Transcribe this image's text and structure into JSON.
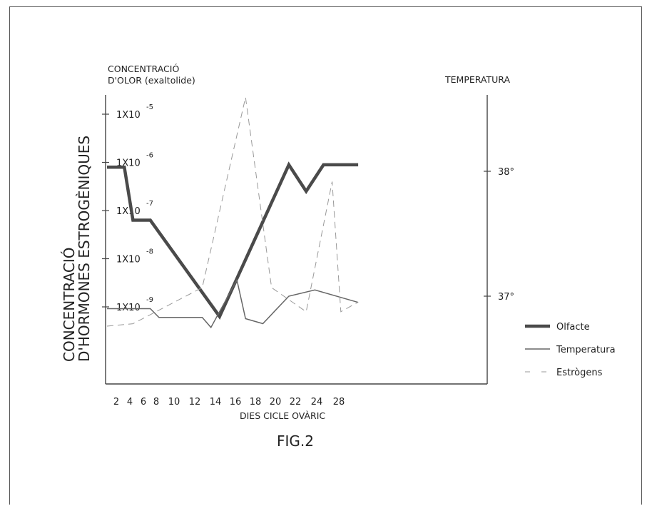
{
  "chart_data": {
    "type": "line",
    "caption": "FIG.2",
    "xlabel": "DIES CICLE OVÀRIC",
    "left_axis_title_line1": "CONCENTRACIÓ",
    "left_axis_title_line2": "D'OLOR (exaltolide)",
    "rotated_axis_title_line1": "CONCENTRACIÓ",
    "rotated_axis_title_line2": "D'HORMONES ESTROGÈNIQUES",
    "right_axis_title": "TEMPERATURA",
    "x_ticks": [
      "2",
      "4",
      "6",
      "8",
      "10",
      "12",
      "14",
      "16",
      "18",
      "20",
      "22",
      "24",
      "28"
    ],
    "y_left_ticks": [
      {
        "base": "1X10",
        "exp": "-5",
        "log": -5
      },
      {
        "base": "1X10",
        "exp": "-6",
        "log": -6
      },
      {
        "base": "1X10",
        "exp": "-7",
        "log": -7
      },
      {
        "base": "1X10",
        "exp": "-8",
        "log": -8
      },
      {
        "base": "1X10",
        "exp": "-9",
        "log": -9
      }
    ],
    "y_right_ticks": [
      {
        "label": "38°",
        "value": 38
      },
      {
        "label": "37°",
        "value": 37
      }
    ],
    "legend_position": "right",
    "series": [
      {
        "name": "Olfacte",
        "style": "thick",
        "axis": "left-log",
        "points": [
          [
            1,
            -6.1
          ],
          [
            3,
            -6.1
          ],
          [
            4,
            -7.2
          ],
          [
            6,
            -7.2
          ],
          [
            14,
            -9.2
          ],
          [
            22,
            -6.05
          ],
          [
            24,
            -6.6
          ],
          [
            26,
            -6.05
          ],
          [
            30,
            -6.05
          ]
        ]
      },
      {
        "name": "Temperatura",
        "style": "thin",
        "axis": "right",
        "points": [
          [
            1,
            36.9
          ],
          [
            6,
            36.9
          ],
          [
            7,
            36.83
          ],
          [
            12,
            36.83
          ],
          [
            13,
            36.75
          ],
          [
            16,
            37.13
          ],
          [
            17,
            36.82
          ],
          [
            19,
            36.78
          ],
          [
            22,
            37.0
          ],
          [
            25,
            37.05
          ],
          [
            30,
            36.95
          ]
        ]
      },
      {
        "name": "Estrògens",
        "style": "dashed",
        "axis": "left-log",
        "points": [
          [
            1,
            -9.4
          ],
          [
            4,
            -9.35
          ],
          [
            12,
            -8.6
          ],
          [
            17,
            -4.65
          ],
          [
            20,
            -8.6
          ],
          [
            24,
            -9.1
          ],
          [
            27,
            -6.4
          ],
          [
            28,
            -9.1
          ],
          [
            30,
            -8.9
          ]
        ]
      }
    ]
  }
}
